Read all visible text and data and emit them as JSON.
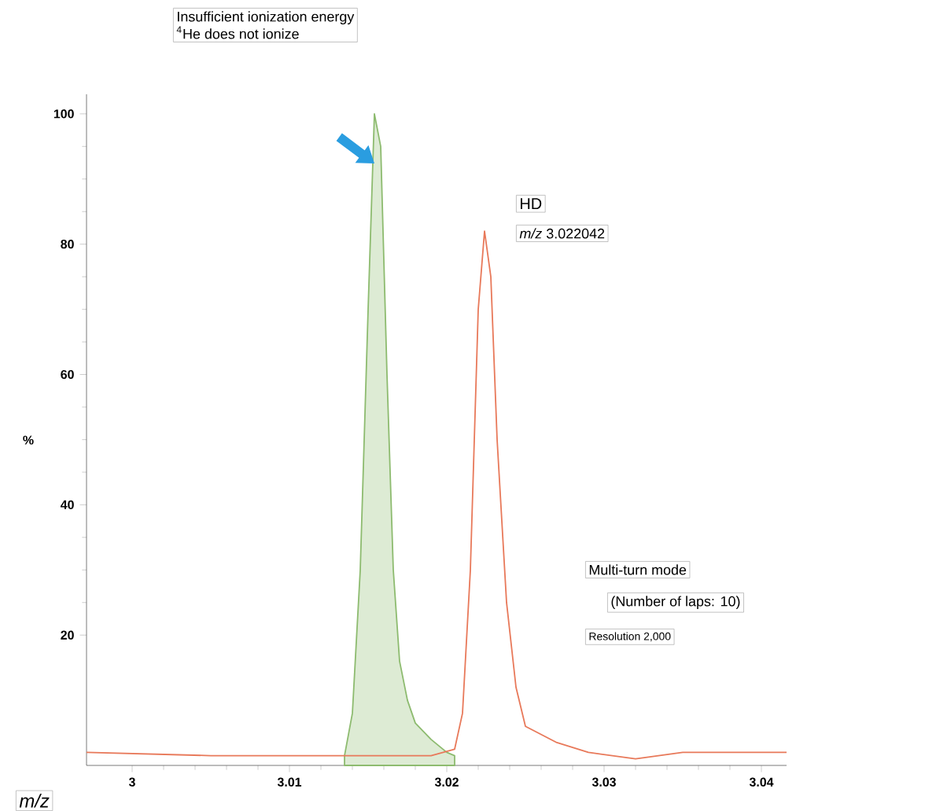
{
  "chart_data": {
    "type": "line",
    "xlabel": "*m/z*",
    "ylabel": "%",
    "xlim": [
      2.9971,
      3.0416
    ],
    "ylim": [
      0,
      103
    ],
    "xticks": [
      3,
      3.01,
      3.02,
      3.03,
      3.04
    ],
    "yticks": [
      20,
      40,
      60,
      80,
      100
    ],
    "series": [
      {
        "type": "area",
        "color": "#8dbb6f",
        "x": [
          3.0135,
          3.014,
          3.0145,
          3.015,
          3.0154,
          3.0158,
          3.0162,
          3.0166,
          3.017,
          3.0175,
          3.018,
          3.019,
          3.02,
          3.0205
        ],
        "values": [
          1.5,
          8,
          30,
          70,
          100,
          95,
          60,
          30,
          16,
          10,
          6.5,
          4,
          2,
          1.5
        ]
      },
      {
        "color": "#e8795a",
        "x": [
          2.9971,
          3.005,
          3.012,
          3.019,
          3.0205,
          3.021,
          3.0215,
          3.022,
          3.0224,
          3.0228,
          3.0232,
          3.0238,
          3.0244,
          3.025,
          3.027,
          3.029,
          3.032,
          3.035,
          3.0416
        ],
        "values": [
          2,
          1.5,
          1.5,
          1.5,
          2.5,
          8,
          30,
          70,
          82,
          75,
          50,
          25,
          12,
          6,
          3.5,
          2,
          1,
          2,
          2
        ]
      }
    ],
    "annotations": [
      "Insufficient ionization energy",
      "$^{4}$He does not ionize",
      "HD",
      "*m/z* 3.022042",
      "Multi-turn mode",
      "(Number of laps: 10)",
      "Resolution 2,000"
    ]
  }
}
